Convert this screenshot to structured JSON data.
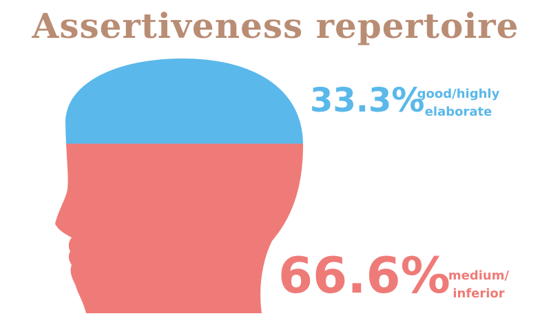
{
  "chart_data": {
    "type": "head",
    "title": "Assertiveness repertoire",
    "categories": [
      "good/highly elaborate",
      "medium/ inferior"
    ],
    "values": [
      33.3,
      66.6
    ],
    "value_labels": [
      "33.3%",
      "66.6%"
    ],
    "colors": [
      "#5ab8ea",
      "#ee7b77"
    ]
  }
}
